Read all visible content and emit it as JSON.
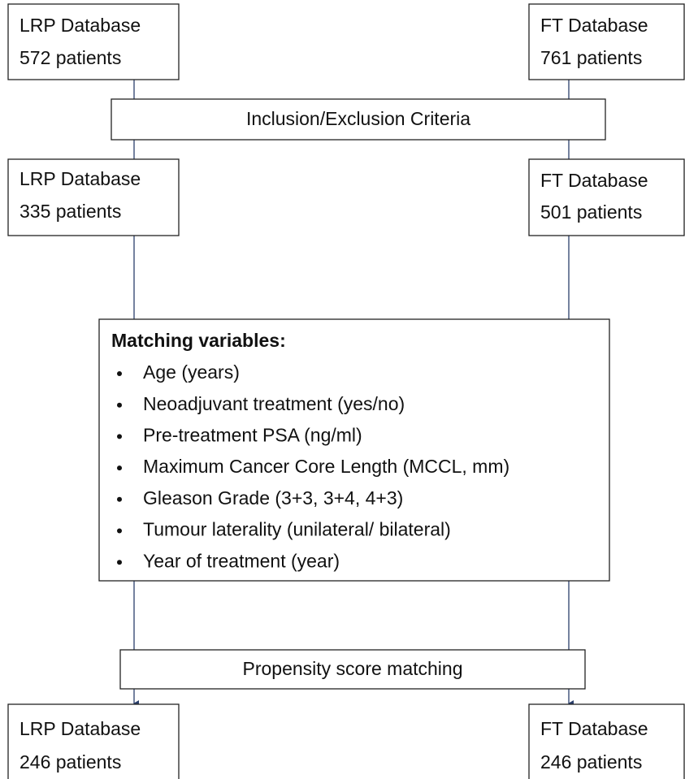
{
  "boxes": [
    {
      "title": "LRP Database",
      "count": "572 patients"
    },
    {
      "title": "FT Database",
      "count": "761 patients"
    },
    {
      "title": "LRP Database",
      "count": "335 patients"
    },
    {
      "title": "FT Database",
      "count": "501 patients"
    },
    {
      "title": "LRP Database",
      "count": "246 patients"
    },
    {
      "title": "FT Database",
      "count": "246 patients"
    }
  ],
  "criteria": "Inclusion/Exclusion Criteria",
  "matching": {
    "title": "Matching variables:",
    "items": [
      "Age (years)",
      "Neoadjuvant treatment (yes/no)",
      "Pre-treatment PSA (ng/ml)",
      "Maximum Cancer Core Length (MCCL, mm)",
      "Gleason Grade (3+3, 3+4, 4+3)",
      "Tumour laterality (unilateral/ bilateral)",
      "Year of treatment (year)"
    ]
  },
  "propensity": "Propensity score matching"
}
